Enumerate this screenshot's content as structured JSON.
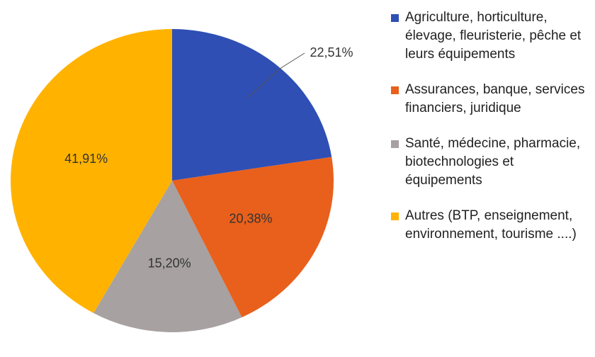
{
  "chart_data": {
    "type": "pie",
    "categories": [
      "Agriculture, horticulture, élevage, fleuristerie, pêche et leurs équipements",
      "Assurances, banque, services financiers, juridique",
      "Santé, médecine, pharmacie, biotechnologies et équipements",
      "Autres (BTP, enseignement, environnement, tourisme ....)"
    ],
    "values": [
      22.51,
      20.38,
      15.2,
      41.91
    ],
    "value_labels": [
      "22,51%",
      "20,38%",
      "15,20%",
      "41,91%"
    ],
    "colors": [
      "#2f4fb4",
      "#e8601c",
      "#a7a1a1",
      "#ffb300"
    ]
  }
}
